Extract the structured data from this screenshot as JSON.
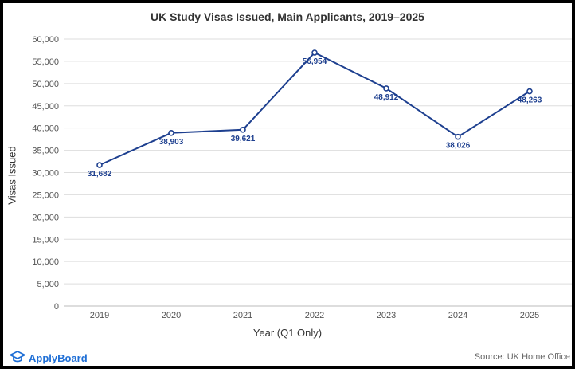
{
  "chart_data": {
    "type": "line",
    "title": "UK Study Visas Issued, Main Applicants, 2019–2025",
    "xlabel": "Year (Q1 Only)",
    "ylabel": "Visas Issued",
    "categories": [
      "2019",
      "2020",
      "2021",
      "2022",
      "2023",
      "2024",
      "2025"
    ],
    "values": [
      31682,
      38903,
      39621,
      56954,
      48912,
      38026,
      48263
    ],
    "value_labels": [
      "31,682",
      "38,903",
      "39,621",
      "56,954",
      "48,912",
      "38,026",
      "48,263"
    ],
    "ylim": [
      0,
      60000
    ],
    "yticks": [
      0,
      5000,
      10000,
      15000,
      20000,
      25000,
      30000,
      35000,
      40000,
      45000,
      50000,
      55000,
      60000
    ],
    "ytick_labels": [
      "0",
      "5,000",
      "10,000",
      "15,000",
      "20,000",
      "25,000",
      "30,000",
      "35,000",
      "40,000",
      "45,000",
      "50,000",
      "55,000",
      "60,000"
    ],
    "grid": true,
    "line_color": "#1d3f8f"
  },
  "footer": {
    "brand": "ApplyBoard",
    "source": "Source: UK Home Office"
  },
  "colors": {
    "brand": "#1f6fd6",
    "gridline": "#dddddd",
    "border": "#000000"
  }
}
